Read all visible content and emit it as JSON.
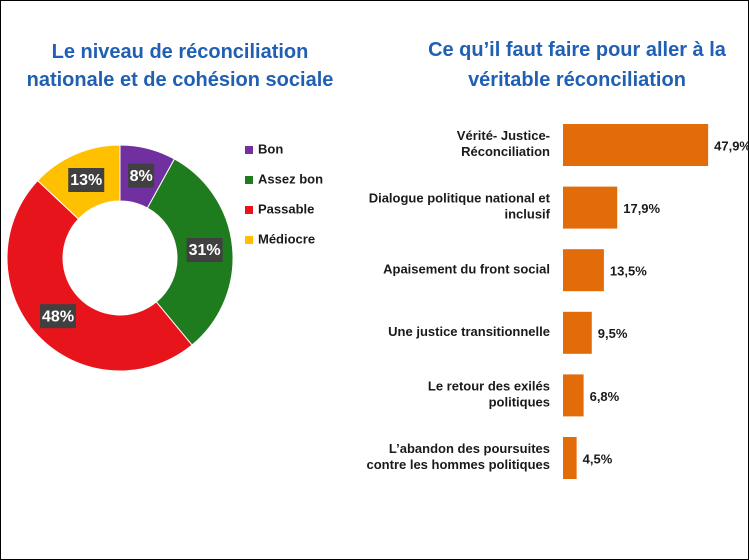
{
  "chart_data": [
    {
      "type": "donut",
      "title": "Le niveau de réconciliation\nnationale et de cohésion sociale",
      "categories": [
        "Bon",
        "Assez bon",
        "Passable",
        "Médiocre"
      ],
      "values": [
        8,
        31,
        48,
        13
      ],
      "value_labels": [
        "8%",
        "31%",
        "48%",
        "13%"
      ],
      "colors": [
        "#7030a0",
        "#1e7b1e",
        "#e8141b",
        "#ffc000"
      ],
      "legend": "right"
    },
    {
      "type": "hbar",
      "title": "Ce qu’il faut faire pour aller à la\nvéritable réconciliation",
      "categories": [
        "Vérité- Justice-\nRéconciliation",
        "Dialogue politique national et\ninclusif",
        "Apaisement du front social",
        "Une justice transitionnelle",
        "Le retour des exilés\npolitiques",
        "L’abandon des poursuites\ncontre les hommes politiques"
      ],
      "values": [
        47.9,
        17.9,
        13.5,
        9.5,
        6.8,
        4.5
      ],
      "value_labels": [
        "47,9%",
        "17,9%",
        "13,5%",
        "9,5%",
        "6,8%",
        "4,5%"
      ],
      "color": "#e36c0a"
    }
  ]
}
